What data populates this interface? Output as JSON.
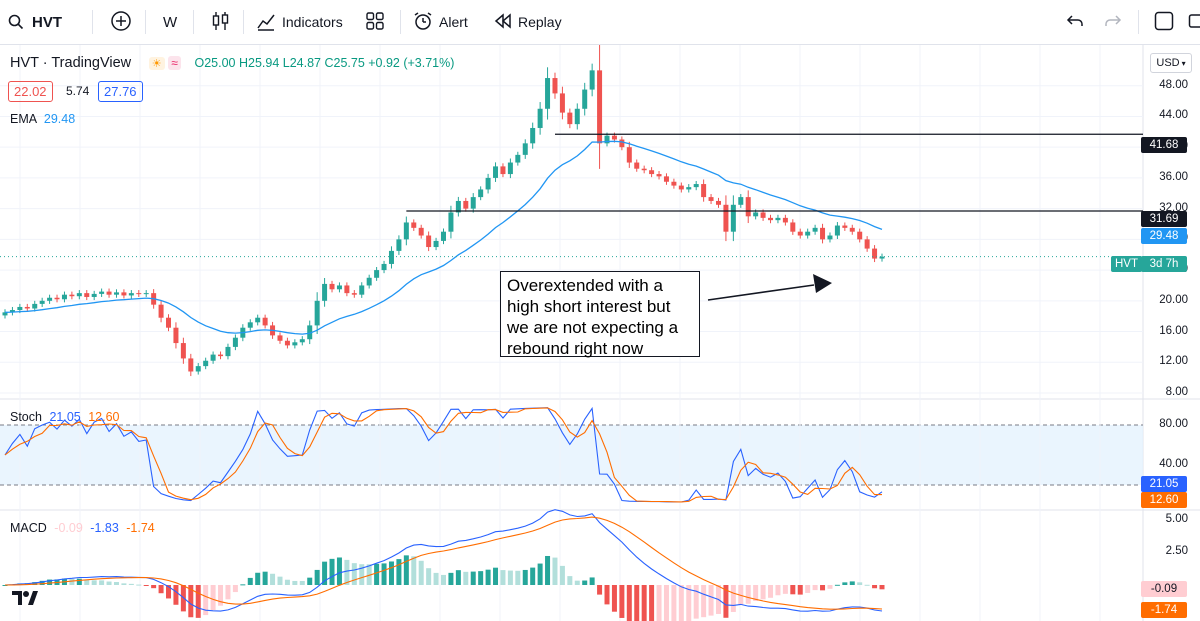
{
  "toolbar": {
    "symbol": "HVT",
    "interval": "W",
    "indicators_label": "Indicators",
    "alert_label": "Alert",
    "replay_label": "Replay"
  },
  "legend": {
    "title": "HVT · TradingView",
    "ohlc": "O25.00  H25.94  L24.87  C25.75  +0.92 (+3.71%)",
    "bid": "22.02",
    "spread": "5.74",
    "ask": "27.76",
    "ema_label": "EMA",
    "ema_value": "29.48",
    "stoch_label": "Stoch",
    "stoch_k": "21.05",
    "stoch_d": "12.60",
    "macd_label": "MACD",
    "macd_hist": "-0.09",
    "macd_line": "-1.83",
    "macd_signal": "-1.74"
  },
  "annotation": {
    "text": "Overextended with a high short interest but we are not expecting a rebound right now"
  },
  "price_axis": {
    "currency": "USD",
    "ticks": [
      "48.00",
      "44.00",
      "40.00",
      "36.00",
      "32.00",
      "28.00",
      "24.00",
      "20.00",
      "16.00",
      "12.00",
      "8.00"
    ],
    "stoch_ticks": [
      "80.00",
      "40.00"
    ],
    "macd_ticks": [
      "5.00",
      "2.50"
    ]
  },
  "price_tags": {
    "level_high": "41.68",
    "level_low": "31.69",
    "ema": "29.48",
    "symbol_tag": "HVT",
    "countdown": "3d 7h",
    "stoch_k": "21.05",
    "stoch_d": "12.60",
    "macd_hist": "-0.09",
    "macd_signal": "-1.74"
  },
  "colors": {
    "up": "#26a69a",
    "down": "#ef5350",
    "ema": "#2196f3",
    "stoch_k": "#2962ff",
    "stoch_d": "#ff6d00",
    "macd_line": "#2962ff",
    "signal_line": "#ff6d00"
  },
  "chart_data": {
    "type": "candlestick",
    "ylim": [
      8,
      52
    ],
    "horizontal_levels": [
      41.68,
      31.69
    ],
    "weekly_closes": [
      18.5,
      18.8,
      19.2,
      19.0,
      19.6,
      20.0,
      20.4,
      20.2,
      20.8,
      20.6,
      21.0,
      20.5,
      20.9,
      21.2,
      20.8,
      21.1,
      20.7,
      21.0,
      20.9,
      21.0,
      19.5,
      17.8,
      16.5,
      14.5,
      12.5,
      10.8,
      11.5,
      12.2,
      13.0,
      12.8,
      14.0,
      15.2,
      16.5,
      17.2,
      17.8,
      16.8,
      15.5,
      14.8,
      14.2,
      14.6,
      15.0,
      16.8,
      20.0,
      22.2,
      21.5,
      22.0,
      21.0,
      20.8,
      22.0,
      23.0,
      24.0,
      24.8,
      26.5,
      28.0,
      30.2,
      29.5,
      28.5,
      27.0,
      27.8,
      29.0,
      31.5,
      33.0,
      32.0,
      33.5,
      34.5,
      36.0,
      37.5,
      36.5,
      38.0,
      39.0,
      40.5,
      42.5,
      45.0,
      49.0,
      47.0,
      44.5,
      43.0,
      45.0,
      47.5,
      50.0,
      40.5,
      41.5,
      41.0,
      40.0,
      38.0,
      37.2,
      37.0,
      36.5,
      36.2,
      35.5,
      35.0,
      34.5,
      34.8,
      35.2,
      33.5,
      33.0,
      32.5,
      29.0,
      32.5,
      33.5,
      31.0,
      31.5,
      30.8,
      30.5,
      30.8,
      30.2,
      29.0,
      28.5,
      29.0,
      29.5,
      28.0,
      28.5,
      29.8,
      29.5,
      29.0,
      28.0,
      26.8,
      25.5,
      25.75
    ]
  }
}
